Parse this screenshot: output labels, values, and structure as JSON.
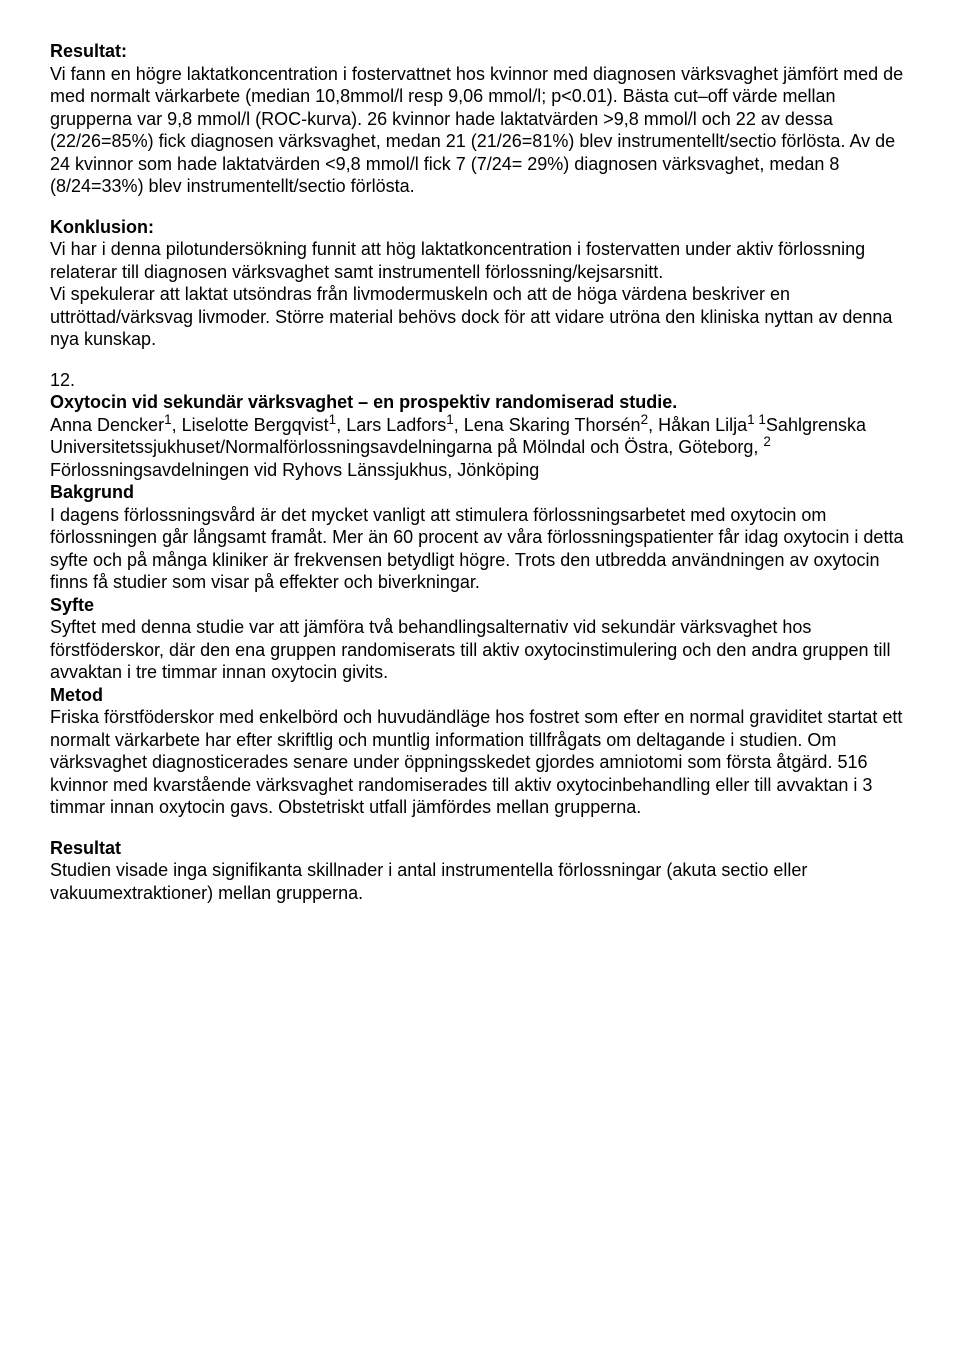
{
  "s1": {
    "heading": "Resultat:",
    "p1": "Vi fann en högre laktatkoncentration i fostervattnet hos kvinnor med diagnosen värksvaghet jämfört med de med normalt värkarbete (median 10,8mmol/l resp 9,06 mmol/l; p<0.01). Bästa cut–off värde mellan grupperna var 9,8 mmol/l (ROC-kurva). 26 kvinnor hade laktatvärden >9,8 mmol/l och 22 av dessa (22/26=85%) fick diagnosen värksvaghet, medan 21 (21/26=81%) blev instrumentellt/sectio förlösta. Av de 24 kvinnor som hade laktatvärden <9,8 mmol/l fick 7 (7/24= 29%) diagnosen värksvaghet, medan 8 (8/24=33%) blev instrumentellt/sectio förlösta."
  },
  "s2": {
    "heading": "Konklusion:",
    "p1": "Vi har i denna pilotundersökning funnit att hög laktatkoncentration i fostervatten under aktiv förlossning relaterar till diagnosen värksvaghet samt instrumentell förlossning/kejsarsnitt.",
    "p2": "Vi spekulerar att laktat utsöndras från livmodermuskeln och att de höga värdena beskriver en uttröttad/värksvag livmoder. Större material behövs dock för att vidare utröna den kliniska nyttan av denna nya kunskap."
  },
  "s3": {
    "num": "12.",
    "title": "Oxytocin vid sekundär värksvaghet – en prospektiv randomiserad studie.",
    "authors_pre": "Anna Dencker",
    "sup1": "1",
    "a2": ", Liselotte Bergqvist",
    "sup2": "1",
    "a3": ", Lars Ladfors",
    "sup3": "1",
    "a4": ", Lena Skaring Thorsén",
    "sup4": "2",
    "a5": ", Håkan Lilja",
    "sup5": "1",
    "aff1_sup": " 1",
    "aff1": "Sahlgrenska Universitetssjukhuset/Normalförlossningsavdelningarna på Mölndal och Östra, Göteborg, ",
    "aff2_sup": "2",
    "aff2": " Förlossningsavdelningen vid Ryhovs Länssjukhus, Jönköping"
  },
  "s4": {
    "heading": "Bakgrund",
    "p1": "I dagens förlossningsvård är det mycket vanligt att stimulera förlossningsarbetet med oxytocin om förlossningen går långsamt framåt. Mer än 60 procent av våra förlossningspatienter får idag oxytocin i detta syfte och på många kliniker är frekvensen betydligt högre. Trots den utbredda användningen av oxytocin finns få studier som visar på effekter och biverkningar."
  },
  "s5": {
    "heading": "Syfte",
    "p1": "Syftet med denna studie var att jämföra två behandlingsalternativ vid sekundär värksvaghet hos förstföderskor, där den ena gruppen randomiserats till aktiv oxytocinstimulering och den andra gruppen till avvaktan i tre timmar innan oxytocin givits."
  },
  "s6": {
    "heading": "Metod",
    "p1": "Friska förstföderskor med enkelbörd och huvudändläge hos fostret som efter en normal graviditet startat ett normalt värkarbete har efter skriftlig och muntlig information tillfrågats om deltagande i studien. Om värksvaghet diagnosticerades senare under öppningsskedet gjordes amniotomi som första åtgärd. 516 kvinnor med kvarstående värksvaghet randomiserades till aktiv oxytocinbehandling eller till avvaktan i 3 timmar innan oxytocin gavs. Obstetriskt utfall jämfördes mellan grupperna."
  },
  "s7": {
    "heading": "Resultat",
    "p1": "Studien visade inga signifikanta skillnader i antal instrumentella förlossningar (akuta sectio eller vakuumextraktioner) mellan grupperna."
  }
}
